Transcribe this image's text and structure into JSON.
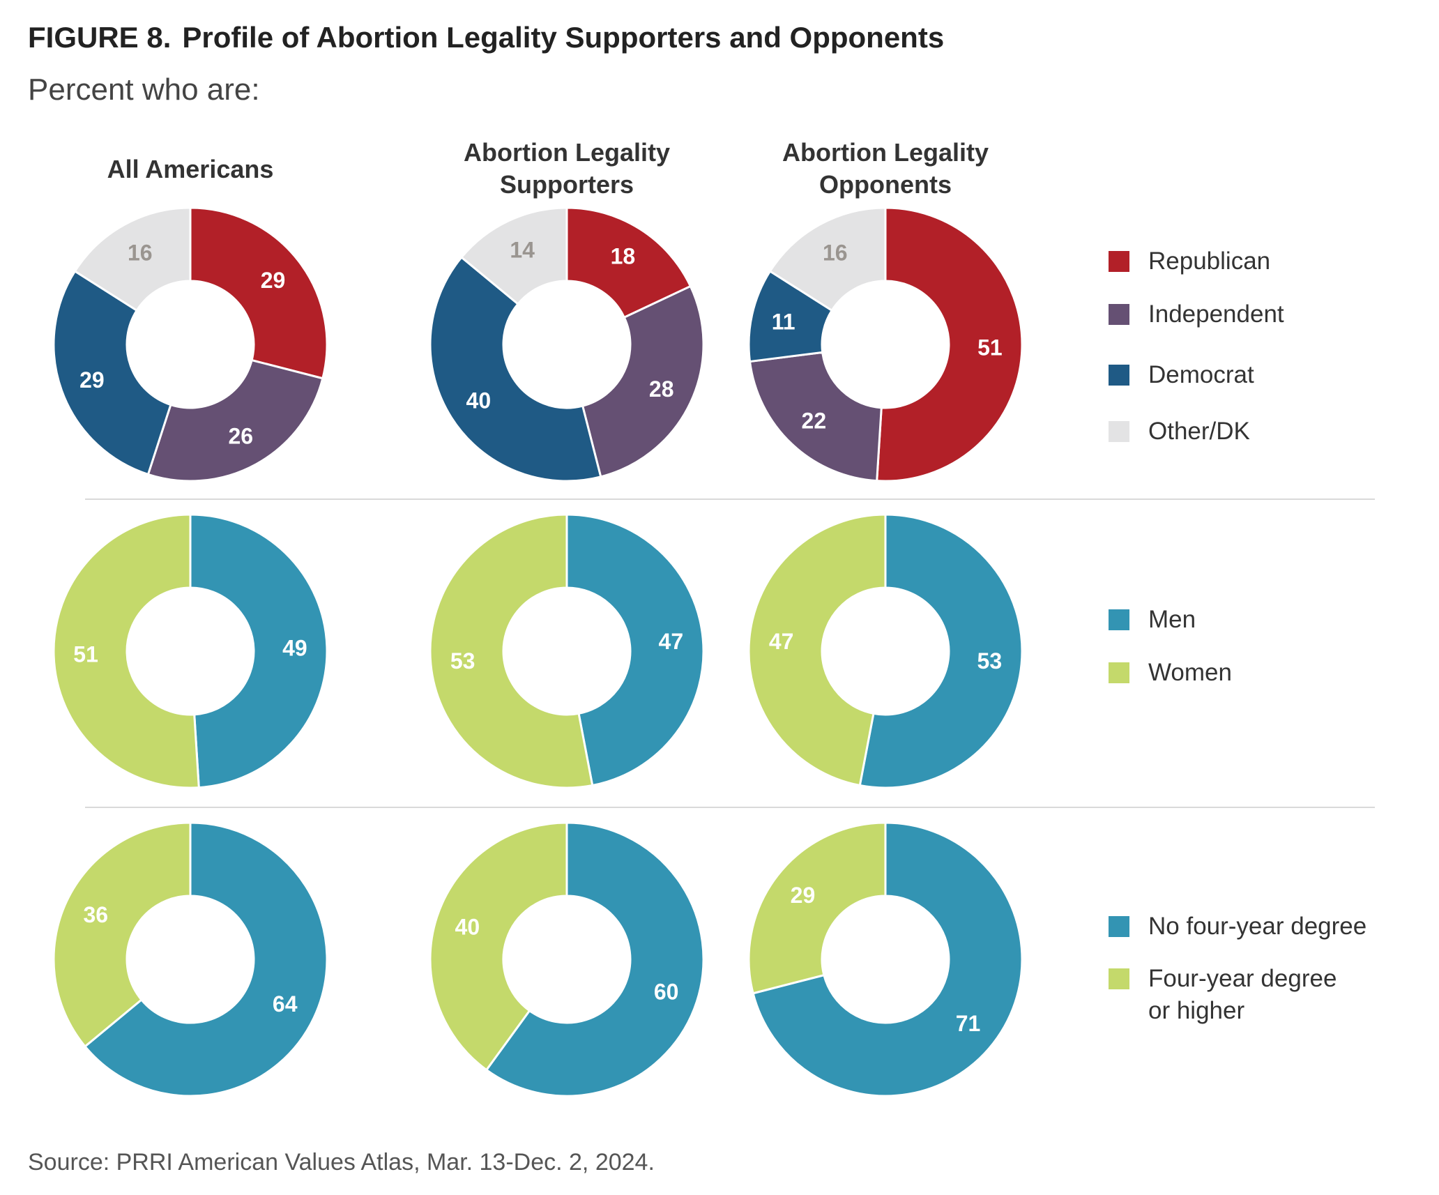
{
  "figure": {
    "label": "FIGURE 8.",
    "title": "Profile of Abortion Legality Supporters and Opponents",
    "subtitle": "Percent who are:",
    "source": "Source: PRRI American Values Atlas, Mar. 13-Dec. 2, 2024."
  },
  "columns": [
    {
      "lines": [
        "All Americans"
      ]
    },
    {
      "lines": [
        "Abortion Legality",
        "Supporters"
      ]
    },
    {
      "lines": [
        "Abortion Legality",
        "Opponents"
      ]
    }
  ],
  "legends": [
    {
      "items": [
        {
          "lines": [
            "Republican"
          ],
          "color": "#b22028"
        },
        {
          "lines": [
            "Independent"
          ],
          "color": "#655073"
        },
        {
          "lines": [
            "Democrat"
          ],
          "color": "#1f5a85"
        },
        {
          "lines": [
            "Other/DK"
          ],
          "color": "#e3e3e4"
        }
      ]
    },
    {
      "items": [
        {
          "lines": [
            "Men"
          ],
          "color": "#3394b3"
        },
        {
          "lines": [
            "Women"
          ],
          "color": "#c4d96b"
        }
      ]
    },
    {
      "items": [
        {
          "lines": [
            "No four-year degree"
          ],
          "color": "#3394b3"
        },
        {
          "lines": [
            "Four-year degree",
            "or higher"
          ],
          "color": "#c4d96b"
        }
      ]
    }
  ],
  "chart_data": [
    {
      "type": "pie",
      "variant": "donut",
      "group": "Party",
      "panel": "All Americans",
      "categories": [
        "Republican",
        "Independent",
        "Democrat",
        "Other/DK"
      ],
      "values": [
        29,
        26,
        29,
        16
      ],
      "colors": [
        "#b22028",
        "#655073",
        "#1f5a85",
        "#e3e3e4"
      ],
      "label_colors": [
        "#ffffff",
        "#ffffff",
        "#ffffff",
        "#9a9590"
      ]
    },
    {
      "type": "pie",
      "variant": "donut",
      "group": "Party",
      "panel": "Abortion Legality Supporters",
      "categories": [
        "Republican",
        "Independent",
        "Democrat",
        "Other/DK"
      ],
      "values": [
        18,
        28,
        40,
        14
      ],
      "colors": [
        "#b22028",
        "#655073",
        "#1f5a85",
        "#e3e3e4"
      ],
      "label_colors": [
        "#ffffff",
        "#ffffff",
        "#ffffff",
        "#9a9590"
      ]
    },
    {
      "type": "pie",
      "variant": "donut",
      "group": "Party",
      "panel": "Abortion Legality Opponents",
      "categories": [
        "Republican",
        "Independent",
        "Democrat",
        "Other/DK"
      ],
      "values": [
        51,
        22,
        11,
        16
      ],
      "colors": [
        "#b22028",
        "#655073",
        "#1f5a85",
        "#e3e3e4"
      ],
      "label_colors": [
        "#ffffff",
        "#ffffff",
        "#ffffff",
        "#9a9590"
      ]
    },
    {
      "type": "pie",
      "variant": "donut",
      "group": "Gender",
      "panel": "All Americans",
      "categories": [
        "Men",
        "Women"
      ],
      "values": [
        49,
        51
      ],
      "colors": [
        "#3394b3",
        "#c4d96b"
      ],
      "label_colors": [
        "#ffffff",
        "#ffffff"
      ]
    },
    {
      "type": "pie",
      "variant": "donut",
      "group": "Gender",
      "panel": "Abortion Legality Supporters",
      "categories": [
        "Men",
        "Women"
      ],
      "values": [
        47,
        53
      ],
      "colors": [
        "#3394b3",
        "#c4d96b"
      ],
      "label_colors": [
        "#ffffff",
        "#ffffff"
      ]
    },
    {
      "type": "pie",
      "variant": "donut",
      "group": "Gender",
      "panel": "Abortion Legality Opponents",
      "categories": [
        "Men",
        "Women"
      ],
      "values": [
        53,
        47
      ],
      "colors": [
        "#3394b3",
        "#c4d96b"
      ],
      "label_colors": [
        "#ffffff",
        "#ffffff"
      ]
    },
    {
      "type": "pie",
      "variant": "donut",
      "group": "Education",
      "panel": "All Americans",
      "categories": [
        "No four-year degree",
        "Four-year degree or higher"
      ],
      "values": [
        64,
        36
      ],
      "colors": [
        "#3394b3",
        "#c4d96b"
      ],
      "label_colors": [
        "#ffffff",
        "#ffffff"
      ]
    },
    {
      "type": "pie",
      "variant": "donut",
      "group": "Education",
      "panel": "Abortion Legality Supporters",
      "categories": [
        "No four-year degree",
        "Four-year degree or higher"
      ],
      "values": [
        60,
        40
      ],
      "colors": [
        "#3394b3",
        "#c4d96b"
      ],
      "label_colors": [
        "#ffffff",
        "#ffffff"
      ]
    },
    {
      "type": "pie",
      "variant": "donut",
      "group": "Education",
      "panel": "Abortion Legality Opponents",
      "categories": [
        "No four-year degree",
        "Four-year degree or higher"
      ],
      "values": [
        71,
        29
      ],
      "colors": [
        "#3394b3",
        "#c4d96b"
      ],
      "label_colors": [
        "#ffffff",
        "#ffffff"
      ]
    }
  ]
}
